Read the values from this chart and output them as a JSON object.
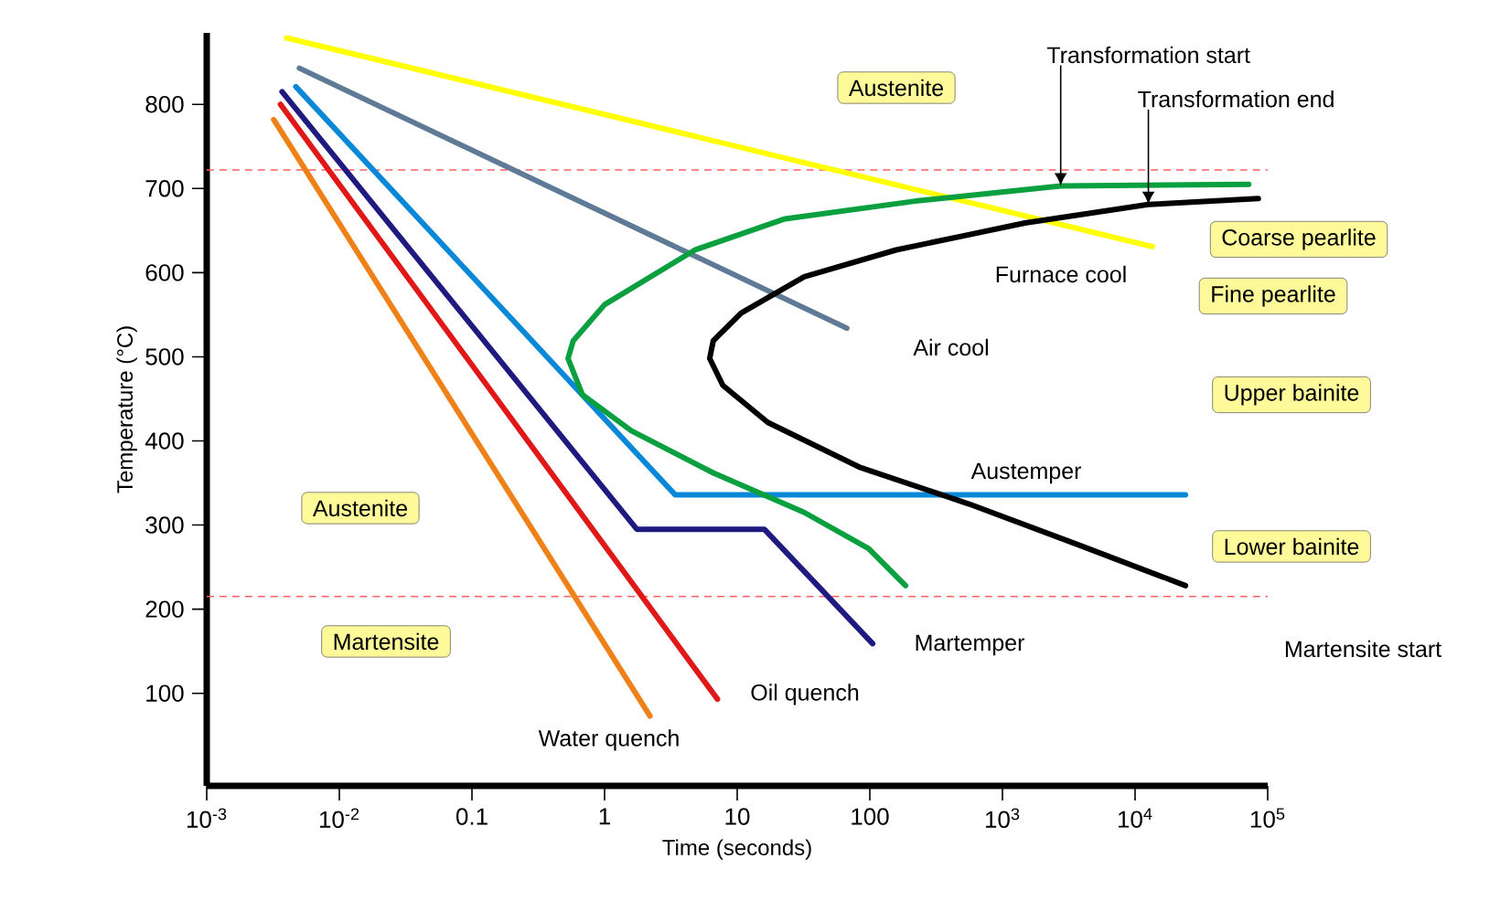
{
  "chart_data": {
    "type": "line",
    "xlabel": "Time (seconds)",
    "ylabel": "Temperature (°C)",
    "log": "x",
    "grid": false,
    "legend": false,
    "marker": "none",
    "line_style": "solid",
    "xlim": [
      0.001,
      100000
    ],
    "ylim": [
      -10,
      885
    ],
    "xticks": [
      {
        "value": 0.001,
        "label": "10$^{-3}$"
      },
      {
        "value": 0.01,
        "label": "10$^{-2}$"
      },
      0.1,
      1,
      10,
      100,
      {
        "value": 1000,
        "label": "10$^{3}$"
      },
      {
        "value": 10000,
        "label": "10$^{4}$"
      },
      {
        "value": 100000,
        "label": "10$^{5}$"
      }
    ],
    "yticks": [
      100,
      200,
      300,
      400,
      500,
      600,
      700,
      800
    ],
    "series": [
      {
        "name": "Furnace cool",
        "color": "#ffff00",
        "x": [
          0.004,
          13500
        ],
        "values": [
          879,
          631
        ]
      },
      {
        "name": "Air cool",
        "color": "#5f7a96",
        "x": [
          0.005,
          67
        ],
        "values": [
          843,
          534
        ]
      },
      {
        "name": "Austemper",
        "color": "#0a88d8",
        "x": [
          0.0047,
          3.4,
          24000
        ],
        "values": [
          821,
          336,
          336
        ]
      },
      {
        "name": "Martemper",
        "color": "#1e1a80",
        "x": [
          0.0037,
          1.75,
          16,
          105
        ],
        "values": [
          815,
          295,
          295,
          159
        ]
      },
      {
        "name": "Oil quench",
        "color": "#e01818",
        "x": [
          0.0036,
          7.1
        ],
        "values": [
          800,
          93
        ]
      },
      {
        "name": "Water quench",
        "color": "#f08018",
        "x": [
          0.0032,
          2.2
        ],
        "values": [
          782,
          73
        ]
      },
      {
        "color": "#0aa040",
        "x": [
          72000,
          2750,
          219,
          23,
          4.8,
          1,
          0.58,
          0.53,
          0.68,
          1.59,
          6.6,
          32,
          98,
          158,
          186
        ],
        "values": [
          705,
          703,
          685,
          664,
          627,
          562,
          519,
          498,
          455,
          412,
          362,
          315,
          272,
          239,
          228
        ]
      },
      {
        "color": "#000000",
        "x": [
          85000,
          12600,
          1480,
          158,
          32,
          10.7,
          6.6,
          6.2,
          7.8,
          17,
          83,
          560,
          3800,
          24000
        ],
        "values": [
          688,
          681,
          659,
          627,
          595,
          552,
          519,
          498,
          466,
          422,
          369,
          325,
          276,
          228
        ]
      }
    ],
    "ref_lines": [
      {
        "axis": "y",
        "value": 722,
        "color": "#ff6060",
        "line_style": "dashed"
      },
      {
        "axis": "y",
        "value": 215,
        "label": "Martensite start",
        "color": "#ff6060",
        "line_style": "dashed"
      }
    ],
    "annotations": [
      "Austenite",
      "Austenite",
      "Martensite",
      "Coarse pearlite",
      "Fine pearlite",
      "Upper bainite",
      "Lower bainite",
      {
        "text": "Transformation start",
        "x": 2750,
        "y": 703
      },
      {
        "text": "Transformation end",
        "x": 12600,
        "y": 681
      }
    ]
  }
}
